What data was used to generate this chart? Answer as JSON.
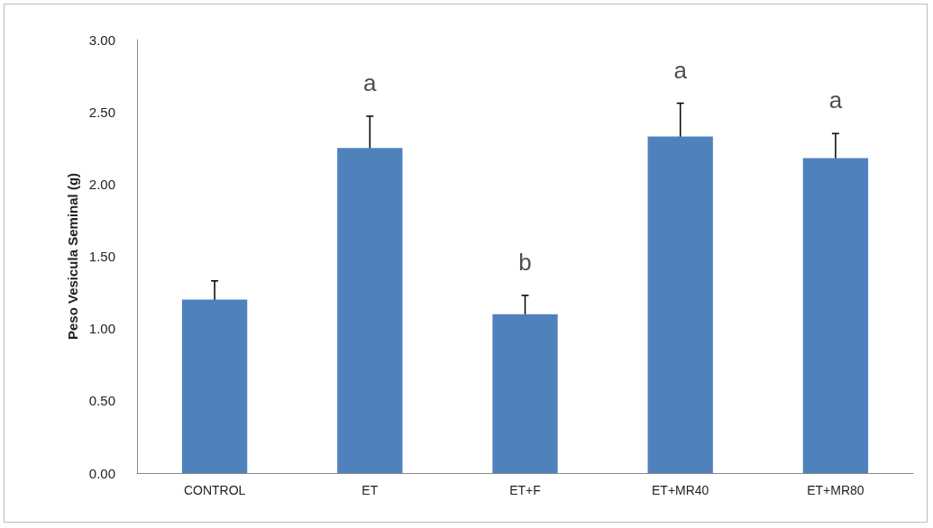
{
  "chart_data": {
    "type": "bar",
    "ylabel": "Peso Vesicula Seminal (g)",
    "categories": [
      "CONTROL",
      "ET",
      "ET+F",
      "ET+MR40",
      "ET+MR80"
    ],
    "values": [
      1.2,
      2.25,
      1.1,
      2.33,
      2.18
    ],
    "errors": [
      0.13,
      0.22,
      0.13,
      0.23,
      0.17
    ],
    "color": "#4f81bd",
    "ylim": [
      0,
      3
    ],
    "yticks": [
      {
        "value": 0,
        "label": "0.00"
      },
      {
        "value": 0.5,
        "label": "0.50"
      },
      {
        "value": 1,
        "label": "1.00"
      },
      {
        "value": 1.5,
        "label": "1.50"
      },
      {
        "value": 2,
        "label": "2.00"
      },
      {
        "value": 2.5,
        "label": "2.50"
      },
      {
        "value": 3,
        "label": "3.00"
      }
    ],
    "grid": false,
    "annotations": [
      "a",
      "b",
      "a",
      "a"
    ]
  }
}
